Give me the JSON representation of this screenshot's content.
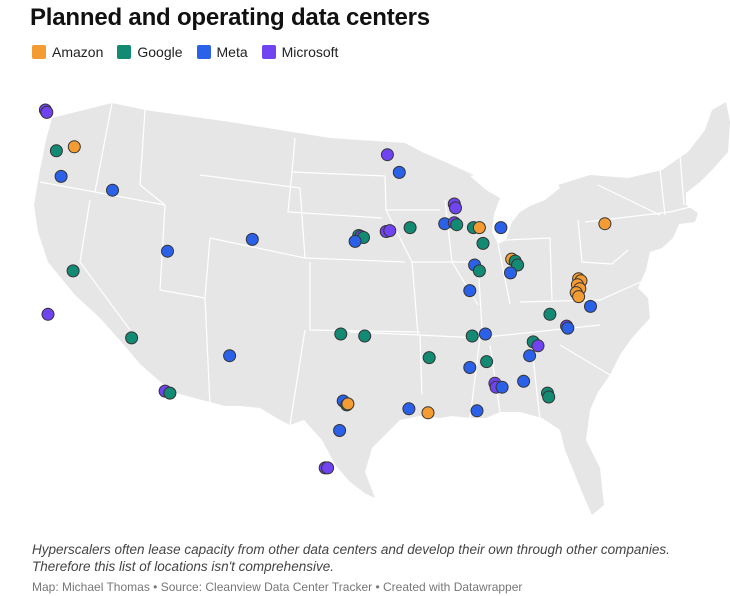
{
  "title": "Planned and operating data centers",
  "legend": [
    {
      "key": "amazon",
      "label": "Amazon",
      "color": "#f39c33"
    },
    {
      "key": "google",
      "label": "Google",
      "color": "#138a74"
    },
    {
      "key": "meta",
      "label": "Meta",
      "color": "#2a61e8"
    },
    {
      "key": "microsoft",
      "label": "Microsoft",
      "color": "#7044f0"
    }
  ],
  "note": "Hyperscalers often lease capacity from other data centers and develop their own through other companies. Therefore this list of locations isn't comprehensive.",
  "source": "Map: Michael Thomas • Source: Cleanview Data Center Tracker • Created with Datawrapper",
  "map_style": {
    "land": "#e6e6e6",
    "border": "#ffffff",
    "marker_outline": "#333333"
  },
  "locations": [
    {
      "company": "microsoft",
      "lon": -122.12,
      "lat": 47.67
    },
    {
      "company": "microsoft",
      "lon": -122.0,
      "lat": 47.55
    },
    {
      "company": "google",
      "lon": -121.2,
      "lat": 45.6
    },
    {
      "company": "amazon",
      "lon": -119.7,
      "lat": 45.8
    },
    {
      "company": "meta",
      "lon": -120.8,
      "lat": 44.3
    },
    {
      "company": "meta",
      "lon": -116.5,
      "lat": 43.6
    },
    {
      "company": "microsoft",
      "lon": -121.9,
      "lat": 37.3
    },
    {
      "company": "google",
      "lon": -119.8,
      "lat": 39.5
    },
    {
      "company": "google",
      "lon": -114.9,
      "lat": 36.1
    },
    {
      "company": "meta",
      "lon": -111.9,
      "lat": 40.5
    },
    {
      "company": "meta",
      "lon": -104.8,
      "lat": 41.1
    },
    {
      "company": "meta",
      "lon": -106.7,
      "lat": 35.2
    },
    {
      "company": "microsoft",
      "lon": -112.1,
      "lat": 33.4
    },
    {
      "company": "google",
      "lon": -111.7,
      "lat": 33.3
    },
    {
      "company": "microsoft",
      "lon": -93.5,
      "lat": 45.4
    },
    {
      "company": "meta",
      "lon": -92.5,
      "lat": 44.5
    },
    {
      "company": "google",
      "lon": -95.9,
      "lat": 41.3
    },
    {
      "company": "microsoft",
      "lon": -95.7,
      "lat": 41.25
    },
    {
      "company": "google",
      "lon": -95.5,
      "lat": 41.2
    },
    {
      "company": "meta",
      "lon": -96.2,
      "lat": 41.0
    },
    {
      "company": "microsoft",
      "lon": -93.6,
      "lat": 41.5
    },
    {
      "company": "microsoft",
      "lon": -93.3,
      "lat": 41.55
    },
    {
      "company": "google",
      "lon": -91.6,
      "lat": 41.7
    },
    {
      "company": "microsoft",
      "lon": -87.9,
      "lat": 42.9
    },
    {
      "company": "microsoft",
      "lon": -87.8,
      "lat": 42.7
    },
    {
      "company": "meta",
      "lon": -88.7,
      "lat": 41.9
    },
    {
      "company": "microsoft",
      "lon": -87.9,
      "lat": 41.95
    },
    {
      "company": "google",
      "lon": -87.7,
      "lat": 41.85
    },
    {
      "company": "google",
      "lon": -86.3,
      "lat": 41.7
    },
    {
      "company": "amazon",
      "lon": -85.8,
      "lat": 41.7
    },
    {
      "company": "meta",
      "lon": -84.0,
      "lat": 41.7
    },
    {
      "company": "google",
      "lon": -85.5,
      "lat": 40.9
    },
    {
      "company": "meta",
      "lon": -86.2,
      "lat": 39.8
    },
    {
      "company": "google",
      "lon": -85.8,
      "lat": 39.5
    },
    {
      "company": "meta",
      "lon": -86.6,
      "lat": 38.5
    },
    {
      "company": "amazon",
      "lon": -83.1,
      "lat": 40.1
    },
    {
      "company": "google",
      "lon": -82.8,
      "lat": 40.0
    },
    {
      "company": "google",
      "lon": -82.6,
      "lat": 39.8
    },
    {
      "company": "meta",
      "lon": -83.2,
      "lat": 39.4
    },
    {
      "company": "amazon",
      "lon": -75.3,
      "lat": 41.9
    },
    {
      "company": "amazon",
      "lon": -77.5,
      "lat": 39.1
    },
    {
      "company": "amazon",
      "lon": -77.3,
      "lat": 39.0
    },
    {
      "company": "amazon",
      "lon": -77.6,
      "lat": 38.8
    },
    {
      "company": "amazon",
      "lon": -77.4,
      "lat": 38.6
    },
    {
      "company": "amazon",
      "lon": -77.7,
      "lat": 38.4
    },
    {
      "company": "amazon",
      "lon": -77.5,
      "lat": 38.2
    },
    {
      "company": "meta",
      "lon": -76.5,
      "lat": 37.7
    },
    {
      "company": "google",
      "lon": -79.9,
      "lat": 37.3
    },
    {
      "company": "microsoft",
      "lon": -78.5,
      "lat": 36.7
    },
    {
      "company": "meta",
      "lon": -78.4,
      "lat": 36.6
    },
    {
      "company": "google",
      "lon": -81.3,
      "lat": 35.9
    },
    {
      "company": "microsoft",
      "lon": -80.9,
      "lat": 35.7
    },
    {
      "company": "meta",
      "lon": -81.6,
      "lat": 35.2
    },
    {
      "company": "google",
      "lon": -86.4,
      "lat": 36.2
    },
    {
      "company": "meta",
      "lon": -85.3,
      "lat": 36.3
    },
    {
      "company": "google",
      "lon": -90.0,
      "lat": 35.1
    },
    {
      "company": "meta",
      "lon": -86.6,
      "lat": 34.6
    },
    {
      "company": "google",
      "lon": -85.2,
      "lat": 34.9
    },
    {
      "company": "microsoft",
      "lon": -84.5,
      "lat": 33.8
    },
    {
      "company": "microsoft",
      "lon": -84.4,
      "lat": 33.6
    },
    {
      "company": "meta",
      "lon": -83.9,
      "lat": 33.6
    },
    {
      "company": "meta",
      "lon": -82.1,
      "lat": 33.9
    },
    {
      "company": "google",
      "lon": -80.1,
      "lat": 33.3
    },
    {
      "company": "google",
      "lon": -80.0,
      "lat": 33.1
    },
    {
      "company": "meta",
      "lon": -86.0,
      "lat": 32.4
    },
    {
      "company": "amazon",
      "lon": -90.1,
      "lat": 32.3
    },
    {
      "company": "meta",
      "lon": -91.7,
      "lat": 32.5
    },
    {
      "company": "google",
      "lon": -95.4,
      "lat": 36.2
    },
    {
      "company": "google",
      "lon": -97.4,
      "lat": 36.3
    },
    {
      "company": "meta",
      "lon": -97.2,
      "lat": 32.9
    },
    {
      "company": "google",
      "lon": -96.9,
      "lat": 32.7
    },
    {
      "company": "amazon",
      "lon": -96.8,
      "lat": 32.75
    },
    {
      "company": "meta",
      "lon": -97.5,
      "lat": 31.4
    },
    {
      "company": "microsoft",
      "lon": -98.7,
      "lat": 29.5
    },
    {
      "company": "microsoft",
      "lon": -98.5,
      "lat": 29.5
    }
  ]
}
